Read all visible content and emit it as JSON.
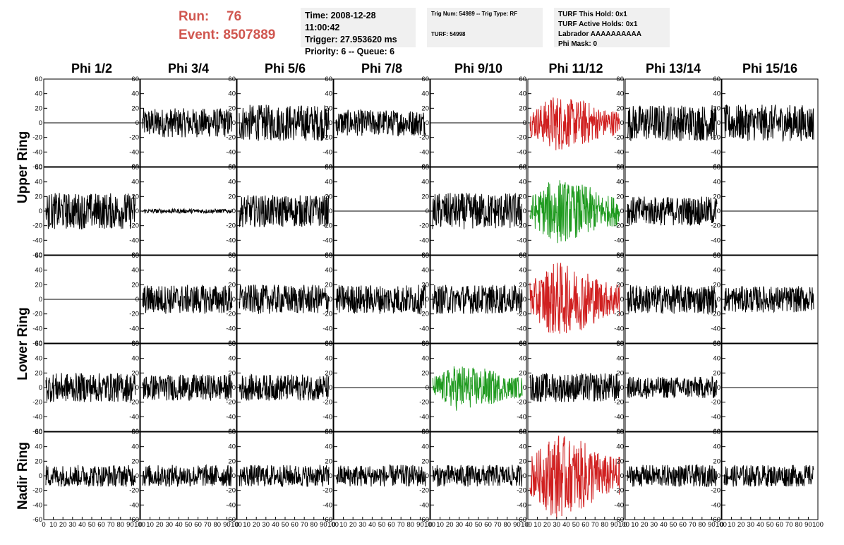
{
  "header": {
    "run_label": "Run:",
    "run_value": "76",
    "event_label": "Event:",
    "event_value": "8507889",
    "time_line": "Time: 2008-12-28 11:00:42",
    "trigger_line": "Trigger: 27.953620 ms",
    "priority_line": "Priority: 6 -- Queue: 6",
    "trig_line": "Trig Num: 54989 -- Trig Type: RF",
    "turf_line": "TURF: 54998",
    "turf_hold_line": "TURF This Hold: 0x1",
    "turf_active_line": "TURF Active Holds: 0x1",
    "labrador_line": "Labrador AAAAAAAAAA",
    "phi_mask_line": "Phi Mask: 0"
  },
  "colors": {
    "title_red": "#d0564f",
    "trace_black": "#000000",
    "trace_red": "#d02020",
    "trace_green": "#1f9a1f",
    "info_bg": "#f0f0f0"
  },
  "chart_data": {
    "type": "line",
    "columns": [
      "Phi 1/2",
      "Phi 3/4",
      "Phi 5/6",
      "Phi 7/8",
      "Phi 9/10",
      "Phi 11/12",
      "Phi 13/14",
      "Phi 15/16"
    ],
    "rows": [
      "Upper Ring",
      "Upper Ring",
      "Lower Ring",
      "Lower Ring",
      "Nadir Ring"
    ],
    "ring_labels": [
      "Upper Ring",
      "Lower Ring",
      "Nadir Ring"
    ],
    "ylim": [
      -60,
      60
    ],
    "y_ticks": [
      60,
      40,
      20,
      0,
      -20,
      -40,
      -60
    ],
    "xlim": [
      0,
      100
    ],
    "x_ticks": [
      0,
      10,
      20,
      30,
      40,
      50,
      60,
      70,
      80,
      90,
      100
    ],
    "panels": [
      [
        "flat",
        "noise",
        "noise",
        "noise",
        "flat",
        "red",
        "noise",
        "noise"
      ],
      [
        "noise",
        "quiet",
        "noise",
        "flat",
        "noise",
        "green",
        "noise",
        "flat"
      ],
      [
        "flat",
        "noise",
        "noise",
        "noise",
        "noise",
        "red",
        "noise",
        "noise"
      ],
      [
        "noise",
        "noise",
        "noise",
        "flat",
        "green",
        "noise",
        "noise",
        "flat"
      ],
      [
        "noise",
        "noise",
        "noise",
        "noise",
        "noise",
        "red",
        "noise",
        "noise"
      ]
    ],
    "panel_amplitude": [
      [
        0,
        20,
        25,
        18,
        0,
        30,
        25,
        25
      ],
      [
        25,
        3,
        22,
        0,
        25,
        35,
        20,
        0
      ],
      [
        0,
        20,
        20,
        20,
        20,
        40,
        20,
        18
      ],
      [
        20,
        18,
        18,
        0,
        25,
        20,
        15,
        0
      ],
      [
        15,
        15,
        15,
        15,
        15,
        45,
        15,
        15
      ]
    ]
  }
}
